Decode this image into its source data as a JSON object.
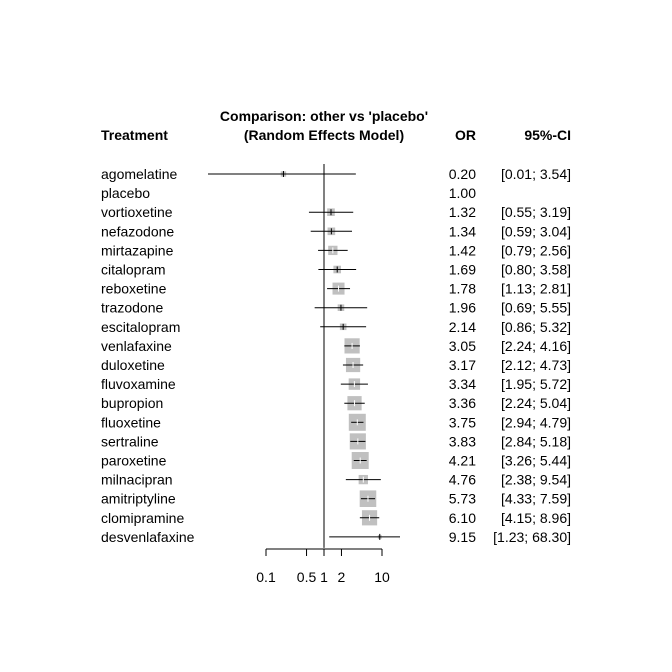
{
  "chart_data": {
    "type": "forest",
    "title_line1": "Comparison: other vs 'placebo'",
    "title_line2": "(Random Effects Model)",
    "col_treatment": "Treatment",
    "col_or": "OR",
    "col_ci": "95%-CI",
    "x_scale": "log",
    "xlim": [
      0.01,
      100
    ],
    "reference_value": 1,
    "ticks": [
      {
        "value": 0.1,
        "label": "0.1"
      },
      {
        "value": 0.5,
        "label": "0.5"
      },
      {
        "value": 1,
        "label": "1"
      },
      {
        "value": 2,
        "label": "2"
      },
      {
        "value": 10,
        "label": "10"
      }
    ],
    "rows": [
      {
        "treatment": "agomelatine",
        "or": 0.2,
        "lower": 0.01,
        "upper": 3.54,
        "or_text": "0.20",
        "ci_text": "[0.01;  3.54]",
        "weight": 0.1
      },
      {
        "treatment": "placebo",
        "or": 1.0,
        "lower": null,
        "upper": null,
        "or_text": "1.00",
        "ci_text": "",
        "weight": 0
      },
      {
        "treatment": "vortioxetine",
        "or": 1.32,
        "lower": 0.55,
        "upper": 3.19,
        "or_text": "1.32",
        "ci_text": "[0.55;  3.19]",
        "weight": 0.2
      },
      {
        "treatment": "nefazodone",
        "or": 1.34,
        "lower": 0.59,
        "upper": 3.04,
        "or_text": "1.34",
        "ci_text": "[0.59;  3.04]",
        "weight": 0.2
      },
      {
        "treatment": "mirtazapine",
        "or": 1.42,
        "lower": 0.79,
        "upper": 2.56,
        "or_text": "1.42",
        "ci_text": "[0.79;  2.56]",
        "weight": 0.3
      },
      {
        "treatment": "citalopram",
        "or": 1.69,
        "lower": 0.8,
        "upper": 3.58,
        "or_text": "1.69",
        "ci_text": "[0.80;  3.58]",
        "weight": 0.2
      },
      {
        "treatment": "reboxetine",
        "or": 1.78,
        "lower": 1.13,
        "upper": 2.81,
        "or_text": "1.78",
        "ci_text": "[1.13;  2.81]",
        "weight": 0.5
      },
      {
        "treatment": "trazodone",
        "or": 1.96,
        "lower": 0.69,
        "upper": 5.55,
        "or_text": "1.96",
        "ci_text": "[0.69;  5.55]",
        "weight": 0.15
      },
      {
        "treatment": "escitalopram",
        "or": 2.14,
        "lower": 0.86,
        "upper": 5.32,
        "or_text": "2.14",
        "ci_text": "[0.86;  5.32]",
        "weight": 0.15
      },
      {
        "treatment": "venlafaxine",
        "or": 3.05,
        "lower": 2.24,
        "upper": 4.16,
        "or_text": "3.05",
        "ci_text": "[2.24;  4.16]",
        "weight": 0.8
      },
      {
        "treatment": "duloxetine",
        "or": 3.17,
        "lower": 2.12,
        "upper": 4.73,
        "or_text": "3.17",
        "ci_text": "[2.12;  4.73]",
        "weight": 0.7
      },
      {
        "treatment": "fluvoxamine",
        "or": 3.34,
        "lower": 1.95,
        "upper": 5.72,
        "or_text": "3.34",
        "ci_text": "[1.95;  5.72]",
        "weight": 0.45
      },
      {
        "treatment": "bupropion",
        "or": 3.36,
        "lower": 2.24,
        "upper": 5.04,
        "or_text": "3.36",
        "ci_text": "[2.24;  5.04]",
        "weight": 0.7
      },
      {
        "treatment": "fluoxetine",
        "or": 3.75,
        "lower": 2.94,
        "upper": 4.79,
        "or_text": "3.75",
        "ci_text": "[2.94;  4.79]",
        "weight": 1.0
      },
      {
        "treatment": "sertraline",
        "or": 3.83,
        "lower": 2.84,
        "upper": 5.18,
        "or_text": "3.83",
        "ci_text": "[2.84;  5.18]",
        "weight": 0.9
      },
      {
        "treatment": "paroxetine",
        "or": 4.21,
        "lower": 3.26,
        "upper": 5.44,
        "or_text": "4.21",
        "ci_text": "[3.26;  5.44]",
        "weight": 1.0
      },
      {
        "treatment": "milnacipran",
        "or": 4.76,
        "lower": 2.38,
        "upper": 9.54,
        "or_text": "4.76",
        "ci_text": "[2.38;  9.54]",
        "weight": 0.3
      },
      {
        "treatment": "amitriptyline",
        "or": 5.73,
        "lower": 4.33,
        "upper": 7.59,
        "or_text": "5.73",
        "ci_text": "[4.33;  7.59]",
        "weight": 0.95
      },
      {
        "treatment": "clomipramine",
        "or": 6.1,
        "lower": 4.15,
        "upper": 8.96,
        "or_text": "6.10",
        "ci_text": "[4.15;  8.96]",
        "weight": 0.8
      },
      {
        "treatment": "desvenlafaxine",
        "or": 9.15,
        "lower": 1.23,
        "upper": 68.3,
        "or_text": "9.15",
        "ci_text": "[1.23; 68.30]",
        "weight": 0.05
      }
    ],
    "colors": {
      "square": "#c0c0c0",
      "line": "#000000",
      "background": "#ffffff"
    },
    "grid": false
  }
}
